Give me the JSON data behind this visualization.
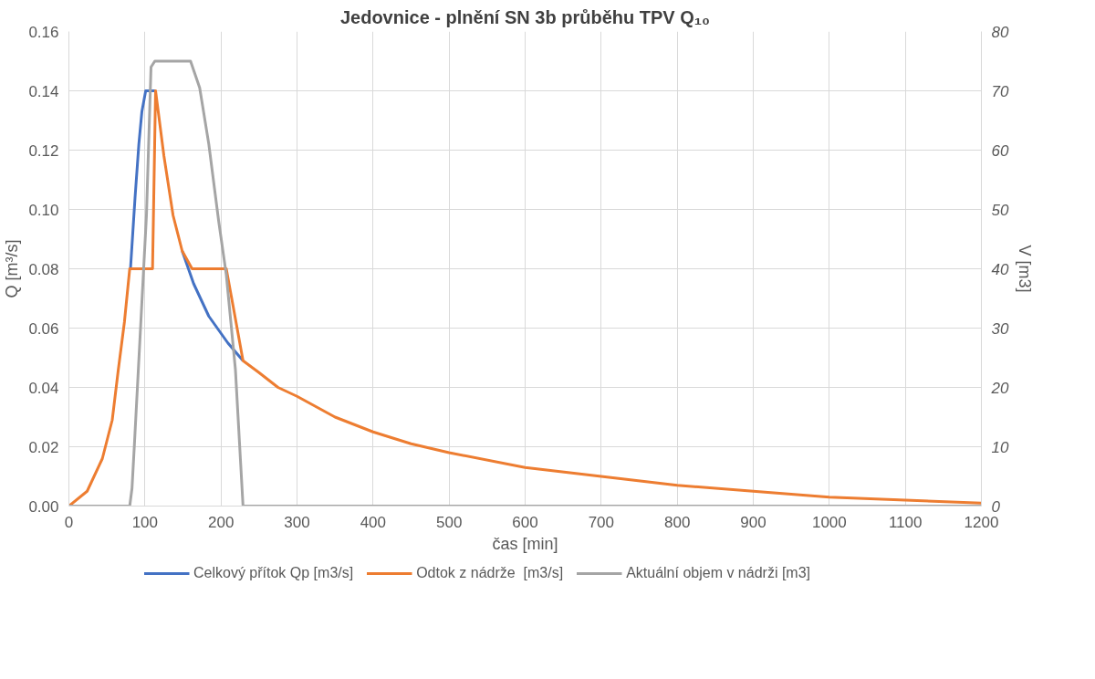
{
  "chart_data": {
    "type": "line",
    "title": "Jedovnice - plnění SN 3b průběhu TPV Q₁₀",
    "xlabel": "čas [min]",
    "ylabel": "Q [m³/s]",
    "y2label": "V [m3]",
    "xlim": [
      0,
      1200
    ],
    "xticks": [
      0,
      100,
      200,
      300,
      400,
      500,
      600,
      700,
      800,
      900,
      1000,
      1100,
      1200
    ],
    "ylim": [
      0,
      0.16
    ],
    "yticks": [
      {
        "value": 0,
        "label": "0.00"
      },
      {
        "value": 0.02,
        "label": "0.02"
      },
      {
        "value": 0.04,
        "label": "0.04"
      },
      {
        "value": 0.06,
        "label": "0.06"
      },
      {
        "value": 0.08,
        "label": "0.08"
      },
      {
        "value": 0.1,
        "label": "0.10"
      },
      {
        "value": 0.12,
        "label": "0.12"
      },
      {
        "value": 0.14,
        "label": "0.14"
      },
      {
        "value": 0.16,
        "label": "0.16"
      }
    ],
    "y2lim": [
      0,
      80
    ],
    "y2ticks": [
      0,
      10,
      20,
      30,
      40,
      50,
      60,
      70,
      80
    ],
    "grid": true,
    "legend": "bottom",
    "line_style": "solid",
    "marker": "none",
    "series": [
      {
        "name": "Celkový přítok Qp [m3/s]",
        "color": "#4472c4",
        "x": [
          81,
          87,
          92,
          96,
          101,
          114,
          null,
          149,
          164,
          184,
          209,
          229
        ],
        "values": [
          0.08,
          0.104,
          0.122,
          0.133,
          0.14,
          0.14,
          null,
          0.086,
          0.075,
          0.064,
          0.055,
          0.049
        ]
      },
      {
        "name": "Odtok z nádrže  [m3/s]",
        "color": "#ed7d31",
        "x": [
          0,
          24,
          44,
          57,
          65,
          73,
          80,
          110,
          114,
          125,
          137,
          149,
          162,
          207,
          229,
          250,
          275,
          300,
          350,
          400,
          450,
          500,
          600,
          700,
          800,
          900,
          1000,
          1100,
          1200
        ],
        "values": [
          0,
          0.005,
          0.016,
          0.029,
          0.046,
          0.062,
          0.08,
          0.08,
          0.14,
          0.118,
          0.098,
          0.086,
          0.08,
          0.08,
          0.049,
          0.045,
          0.04,
          0.037,
          0.03,
          0.025,
          0.021,
          0.018,
          0.013,
          0.01,
          0.007,
          0.005,
          0.003,
          0.002,
          0.001
        ]
      },
      {
        "name": "Aktuální objem v nádrži [m3]",
        "color": "#a5a5a5",
        "axis": "y2",
        "x": [
          0,
          80,
          83,
          86,
          102,
          108,
          113,
          160,
          172,
          184,
          197,
          207,
          219,
          229,
          1200
        ],
        "values": [
          0,
          0,
          3,
          10,
          49,
          74,
          75,
          75,
          70.5,
          61,
          48,
          39,
          23,
          0,
          0
        ]
      }
    ]
  }
}
